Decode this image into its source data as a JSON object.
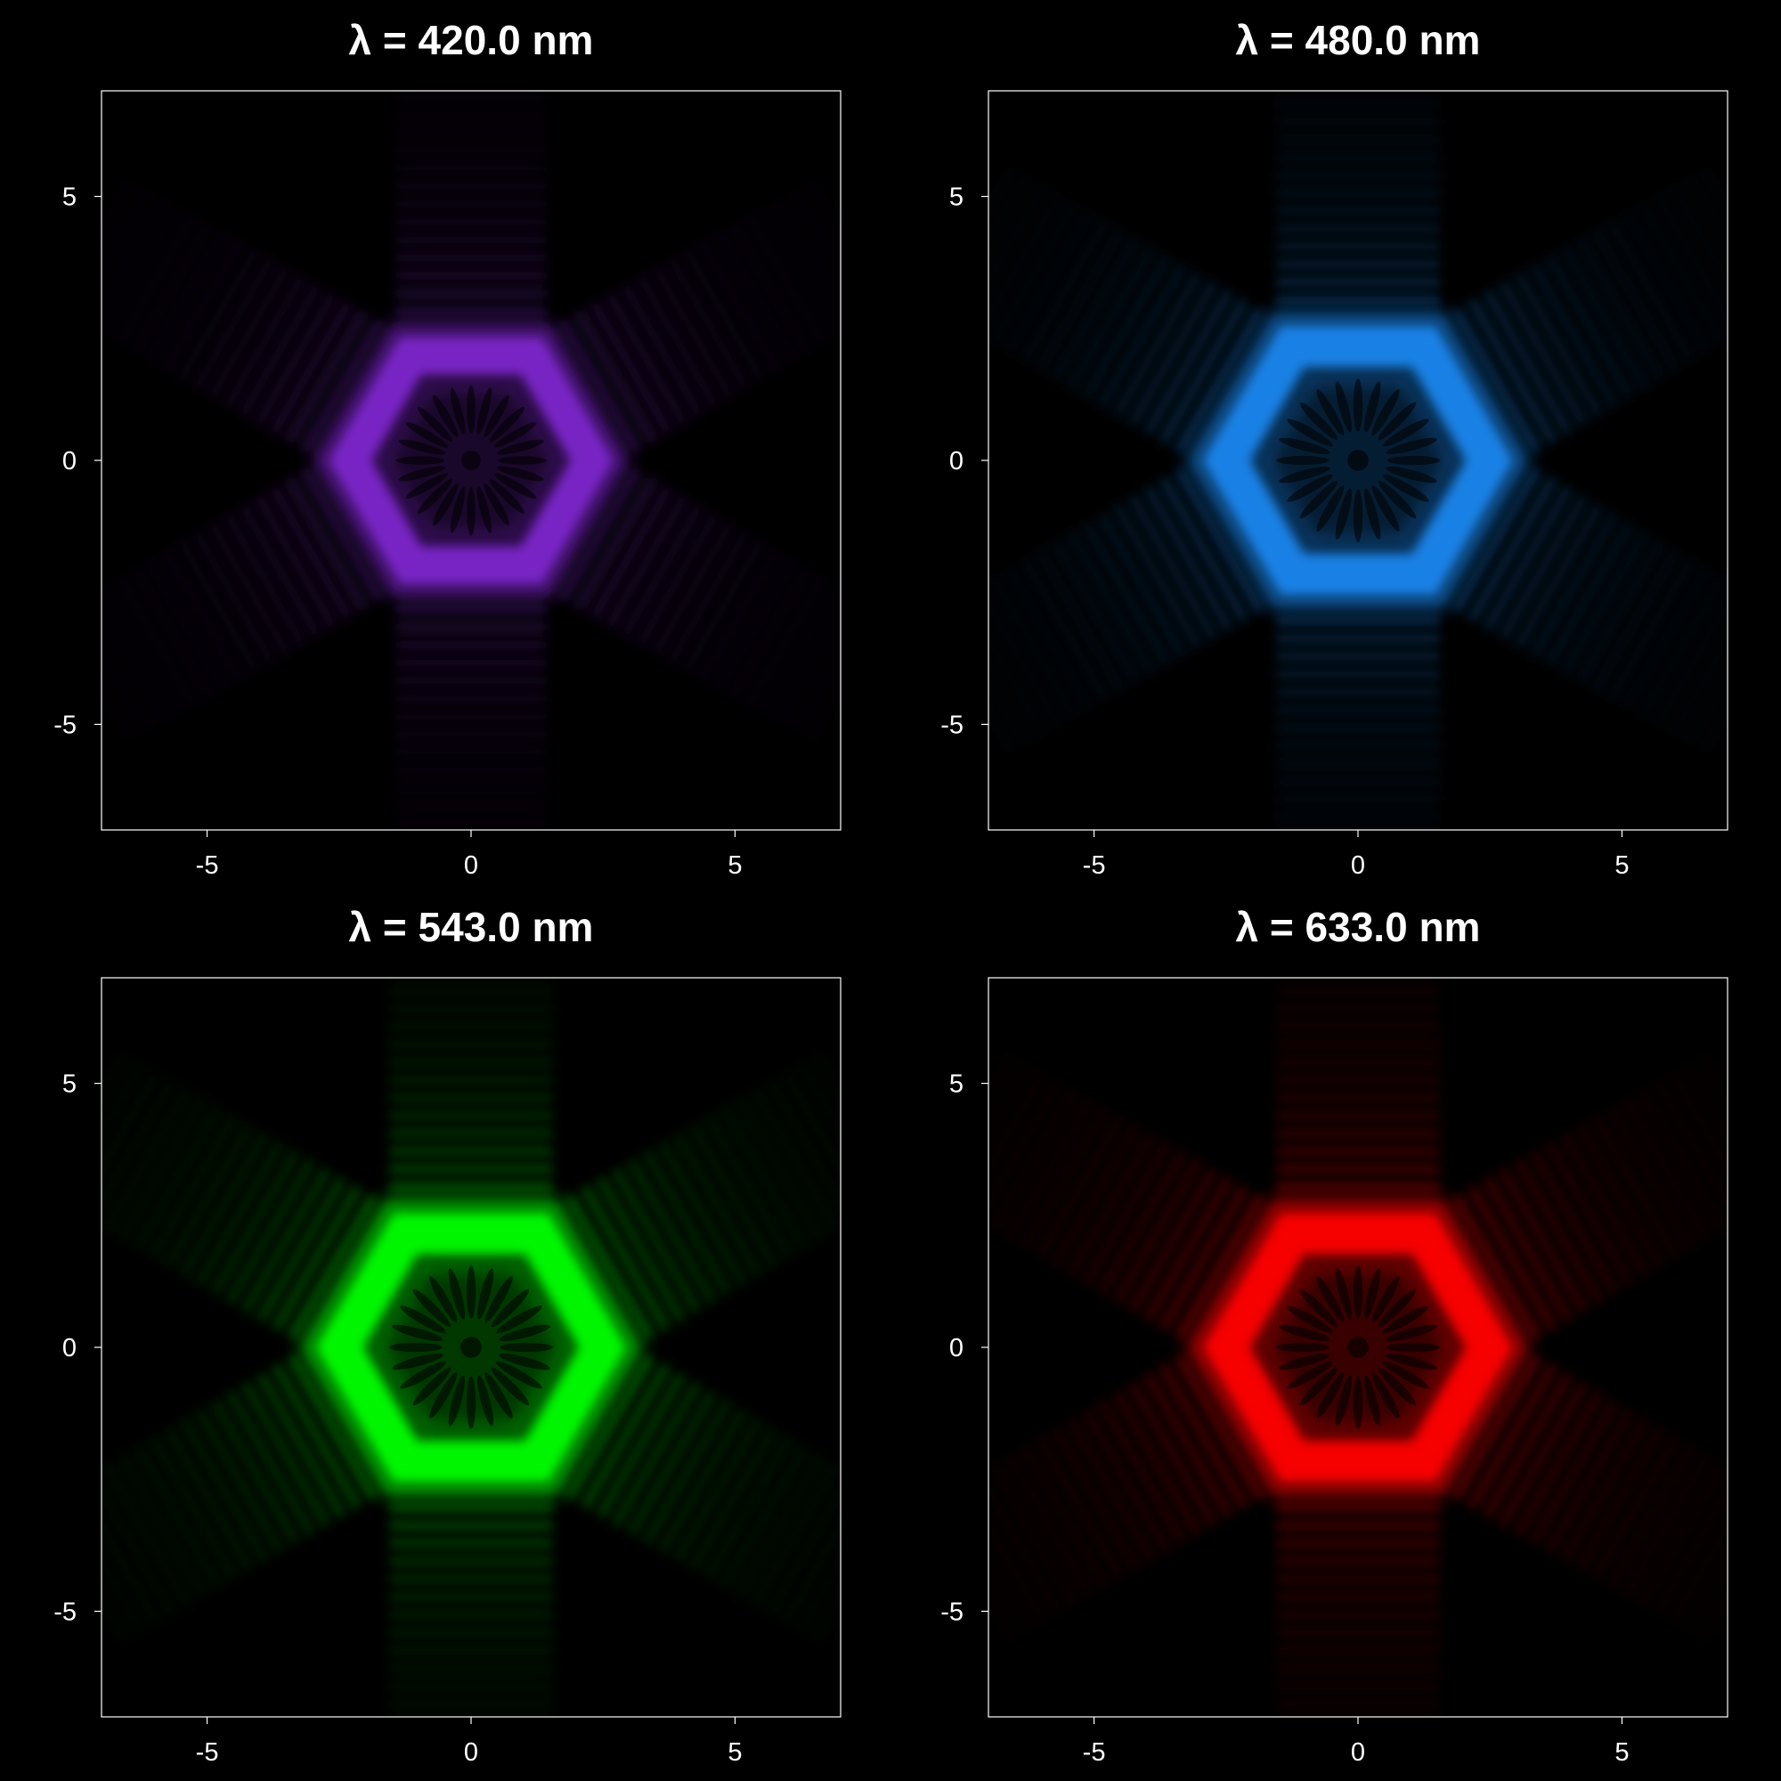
{
  "chart_data": [
    {
      "type": "heatmap",
      "title": "λ = 420.0 nm",
      "wavelength_nm": 420.0,
      "color": "#8a2be2",
      "pattern": "hexagonal diffraction ring with radial interference fringes",
      "xlim": [
        -7,
        7
      ],
      "ylim": [
        -7,
        7
      ],
      "xticks": [
        "-5",
        "0",
        "5"
      ],
      "yticks": [
        "5",
        "0",
        "-5"
      ],
      "ring_radius": 2.3,
      "brightness": 0.85
    },
    {
      "type": "heatmap",
      "title": "λ = 480.0 nm",
      "wavelength_nm": 480.0,
      "color": "#1e90ff",
      "pattern": "hexagonal diffraction ring with radial interference fringes",
      "xlim": [
        -7,
        7
      ],
      "ylim": [
        -7,
        7
      ],
      "xticks": [
        "-5",
        "0",
        "5"
      ],
      "yticks": [
        "5",
        "0",
        "-5"
      ],
      "ring_radius": 2.5,
      "brightness": 0.9
    },
    {
      "type": "heatmap",
      "title": "λ = 543.0 nm",
      "wavelength_nm": 543.0,
      "color": "#00ff00",
      "pattern": "hexagonal diffraction ring with radial interference fringes",
      "xlim": [
        -7,
        7
      ],
      "ylim": [
        -7,
        7
      ],
      "xticks": [
        "-5",
        "0",
        "5"
      ],
      "yticks": [
        "5",
        "0",
        "-5"
      ],
      "ring_radius": 2.5,
      "brightness": 1.0
    },
    {
      "type": "heatmap",
      "title": "λ = 633.0 nm",
      "wavelength_nm": 633.0,
      "color": "#ff0000",
      "pattern": "hexagonal diffraction ring with radial interference fringes",
      "xlim": [
        -7,
        7
      ],
      "ylim": [
        -7,
        7
      ],
      "xticks": [
        "-5",
        "0",
        "5"
      ],
      "yticks": [
        "5",
        "0",
        "-5"
      ],
      "ring_radius": 2.5,
      "brightness": 1.0
    }
  ],
  "colors": {
    "background": "#000000",
    "axes": "#ffffff"
  }
}
